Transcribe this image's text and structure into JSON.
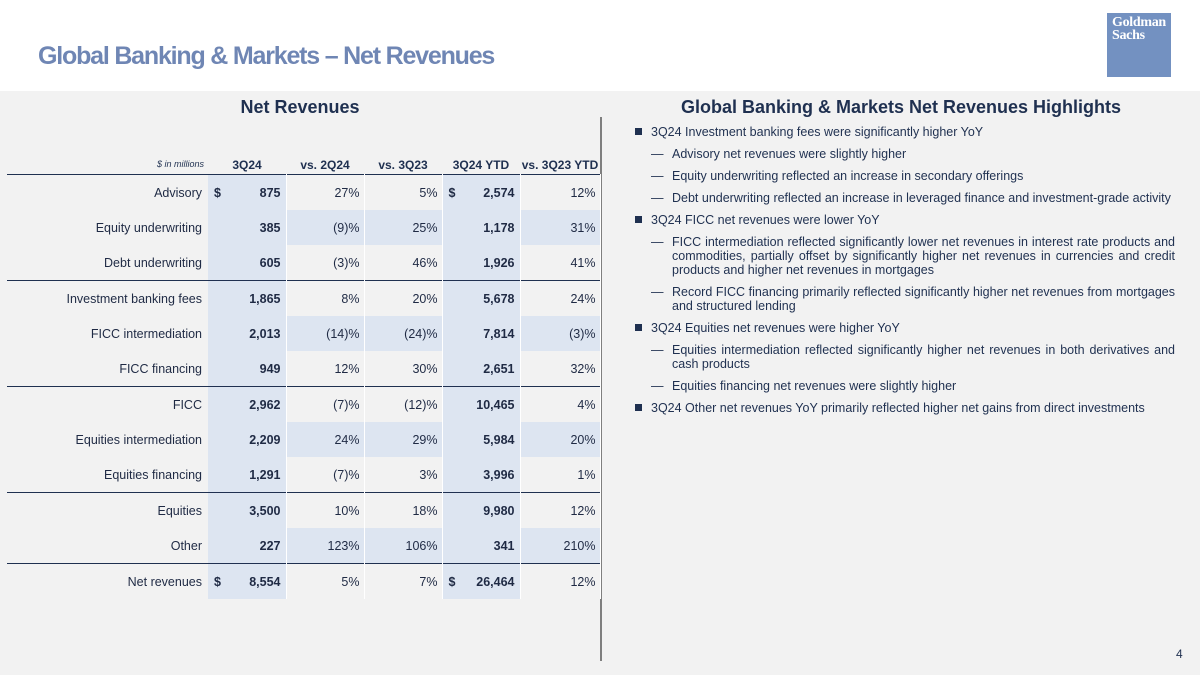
{
  "page": {
    "title": "Global Banking & Markets – Net Revenues",
    "logo_line1": "Goldman",
    "logo_line2": "Sachs",
    "page_number": "4"
  },
  "table": {
    "heading": "Net Revenues",
    "units": "$ in millions",
    "columns": [
      "3Q24",
      "vs. 2Q24",
      "vs. 3Q23",
      "3Q24 YTD",
      "vs. 3Q23 YTD"
    ],
    "rows": [
      {
        "label": "Advisory",
        "q": "875",
        "vs2q": "27%",
        "vs3q": "5%",
        "ytd": "2,574",
        "vsytd": "12%",
        "dollar": "$"
      },
      {
        "label": "Equity underwriting",
        "q": "385",
        "vs2q": "(9)%",
        "vs3q": "25%",
        "ytd": "1,178",
        "vsytd": "31%"
      },
      {
        "label": "Debt underwriting",
        "q": "605",
        "vs2q": "(3)%",
        "vs3q": "46%",
        "ytd": "1,926",
        "vsytd": "41%"
      },
      {
        "label": "Investment banking fees",
        "q": "1,865",
        "vs2q": "8%",
        "vs3q": "20%",
        "ytd": "5,678",
        "vsytd": "24%"
      },
      {
        "label": "FICC intermediation",
        "q": "2,013",
        "vs2q": "(14)%",
        "vs3q": "(24)%",
        "ytd": "7,814",
        "vsytd": "(3)%"
      },
      {
        "label": "FICC financing",
        "q": "949",
        "vs2q": "12%",
        "vs3q": "30%",
        "ytd": "2,651",
        "vsytd": "32%"
      },
      {
        "label": "FICC",
        "q": "2,962",
        "vs2q": "(7)%",
        "vs3q": "(12)%",
        "ytd": "10,465",
        "vsytd": "4%"
      },
      {
        "label": "Equities intermediation",
        "q": "2,209",
        "vs2q": "24%",
        "vs3q": "29%",
        "ytd": "5,984",
        "vsytd": "20%"
      },
      {
        "label": "Equities financing",
        "q": "1,291",
        "vs2q": "(7)%",
        "vs3q": "3%",
        "ytd": "3,996",
        "vsytd": "1%"
      },
      {
        "label": "Equities",
        "q": "3,500",
        "vs2q": "10%",
        "vs3q": "18%",
        "ytd": "9,980",
        "vsytd": "12%"
      },
      {
        "label": "Other",
        "q": "227",
        "vs2q": "123%",
        "vs3q": "106%",
        "ytd": "341",
        "vsytd": "210%"
      },
      {
        "label": "Net revenues",
        "q": "8,554",
        "vs2q": "5%",
        "vs3q": "7%",
        "ytd": "26,464",
        "vsytd": "12%",
        "dollar": "$"
      }
    ]
  },
  "highlights": {
    "heading": "Global Banking & Markets Net Revenues Highlights",
    "dash_glyph": "—",
    "items": [
      {
        "type": "bullet",
        "text": "3Q24 Investment banking fees were significantly higher YoY"
      },
      {
        "type": "sub",
        "text": "Advisory net revenues were slightly higher"
      },
      {
        "type": "sub",
        "text": "Equity underwriting reflected an increase in secondary offerings"
      },
      {
        "type": "sub",
        "text": "Debt underwriting reflected an increase in leveraged finance and investment-grade activity"
      },
      {
        "type": "bullet",
        "text": "3Q24 FICC net revenues were lower YoY"
      },
      {
        "type": "sub",
        "text": "FICC intermediation reflected significantly lower net revenues in interest rate products and commodities, partially offset by significantly higher net revenues in currencies and credit products and higher net revenues in mortgages"
      },
      {
        "type": "sub",
        "text": "Record FICC financing primarily reflected significantly higher net revenues from mortgages and structured lending"
      },
      {
        "type": "bullet",
        "text": "3Q24 Equities net revenues were higher YoY"
      },
      {
        "type": "sub",
        "text": "Equities intermediation reflected significantly higher net revenues in both derivatives and cash products"
      },
      {
        "type": "sub",
        "text": "Equities financing net revenues were slightly higher"
      },
      {
        "type": "bullet",
        "text": "3Q24 Other net revenues YoY primarily reflected higher net gains from direct investments"
      }
    ]
  }
}
